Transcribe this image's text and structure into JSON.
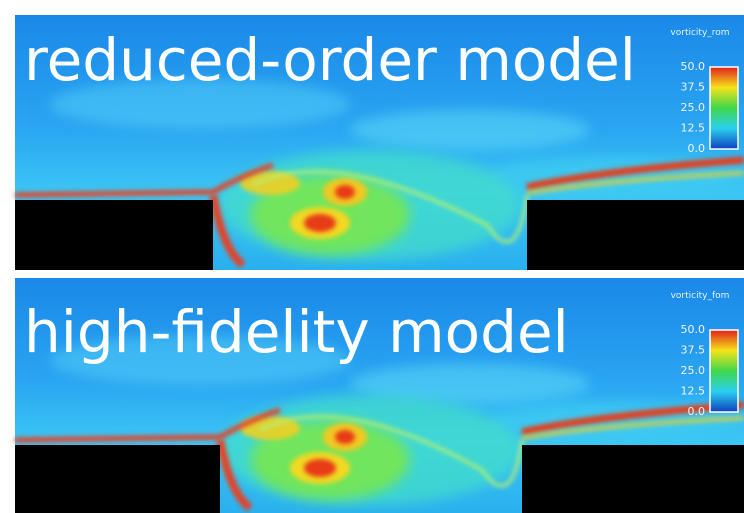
{
  "panels": [
    {
      "title": "reduced-order model",
      "colorbar": {
        "title": "vorticity_rom",
        "ticks": [
          "50.0",
          "37.5",
          "25.0",
          "12.5",
          "0.0"
        ]
      }
    },
    {
      "title": "high-fidelity model",
      "colorbar": {
        "title": "vorticity_fom",
        "ticks": [
          "50.0",
          "37.5",
          "25.0",
          "12.5",
          "0.0"
        ]
      }
    }
  ]
}
